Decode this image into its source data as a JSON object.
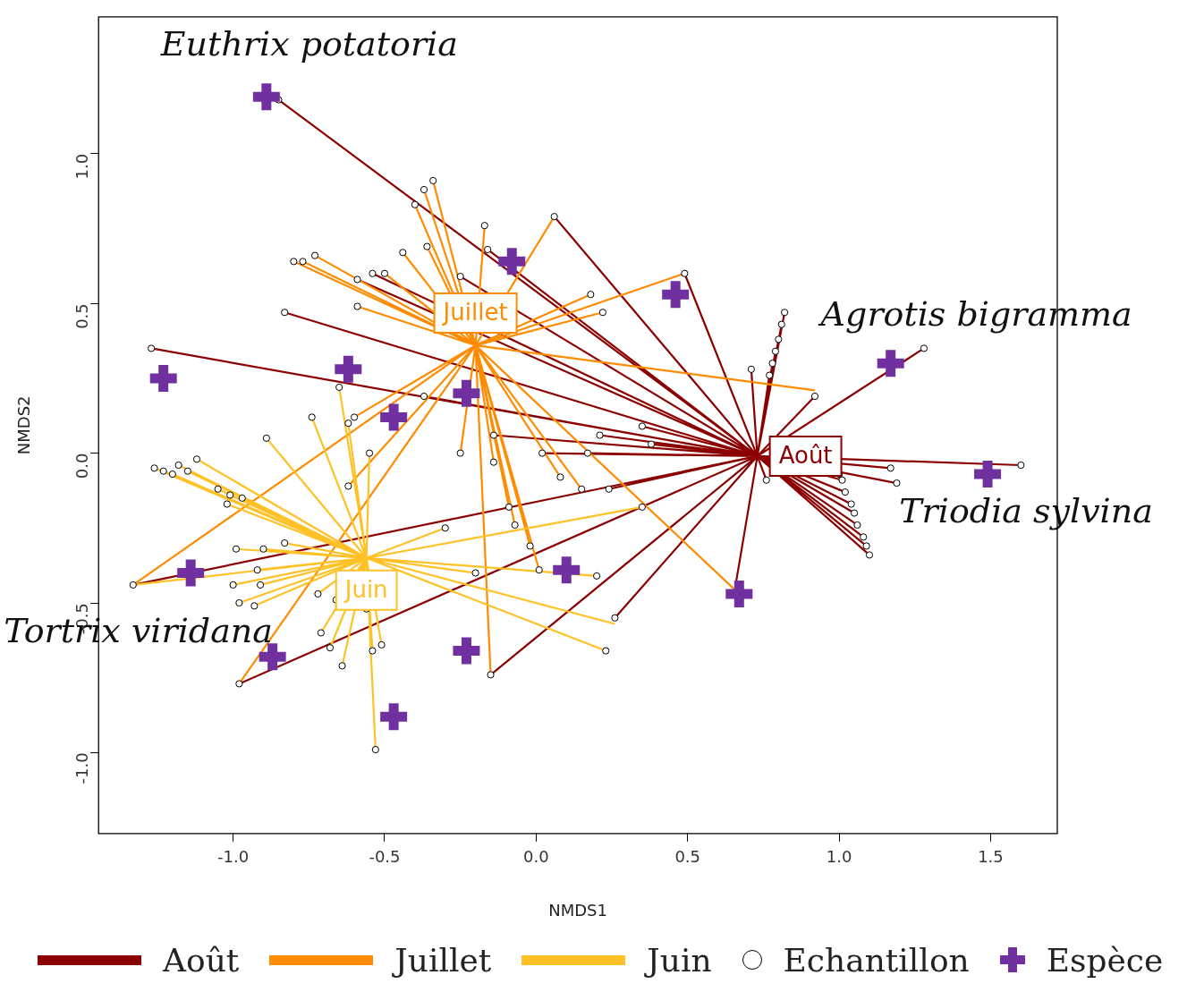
{
  "chart_data": {
    "type": "scatter",
    "xlabel": "NMDS1",
    "ylabel": "NMDS2",
    "xlim": [
      -1.444,
      1.72
    ],
    "ylim": [
      -1.27,
      1.457
    ],
    "xticks": [
      {
        "value": -1,
        "label": "-1.0"
      },
      {
        "value": -0.5,
        "label": "-0.5"
      },
      {
        "value": 0,
        "label": "0.0"
      },
      {
        "value": 0.5,
        "label": "0.5"
      },
      {
        "value": 1,
        "label": "1.0"
      },
      {
        "value": 1.5,
        "label": "1.5"
      }
    ],
    "yticks": [
      {
        "value": -1,
        "label": "-1.0"
      },
      {
        "value": -0.5,
        "label": "-0.5"
      },
      {
        "value": 0,
        "label": "0.0"
      },
      {
        "value": 0.5,
        "label": "0.5"
      },
      {
        "value": 1,
        "label": "1.0"
      }
    ],
    "grid": false,
    "legend": "bottom",
    "annotations": [
      {
        "text": "Août",
        "x": 0.73,
        "y": -0.01
      },
      {
        "text": "Juillet",
        "x": -0.2,
        "y": 0.36
      },
      {
        "text": "Juin",
        "x": -0.56,
        "y": -0.35
      },
      {
        "text": "Euthrix potatoria",
        "x": -0.89,
        "y": 1.19
      },
      {
        "text": "Agrotis bigramma",
        "x": 1.17,
        "y": 0.3
      },
      {
        "text": "Triodia sylvina",
        "x": 1.49,
        "y": -0.07
      },
      {
        "text": "Tortrix viridana",
        "x": -0.87,
        "y": -0.68
      }
    ],
    "series": [
      {
        "name": "Août",
        "type": "line",
        "color": "#8b0000",
        "x": [
          -0.85,
          0.73,
          null,
          0.06,
          0.73,
          null,
          0.49,
          0.73,
          null,
          -0.25,
          0.73,
          null,
          -0.16,
          0.73,
          null,
          0.82,
          0.73,
          null,
          0.81,
          0.73,
          null,
          0.8,
          0.73,
          null,
          0.79,
          0.73,
          null,
          0.78,
          0.73,
          null,
          0.77,
          0.73,
          null,
          0.71,
          0.73,
          null,
          0.92,
          0.73,
          null,
          1.28,
          0.73,
          null,
          1.6,
          0.73,
          null,
          1.17,
          0.73,
          null,
          1.19,
          0.73,
          null,
          1.0,
          0.73,
          null,
          1.01,
          0.73,
          null,
          1.02,
          0.73,
          null,
          1.04,
          0.73,
          null,
          1.05,
          0.73,
          null,
          1.06,
          0.73,
          null,
          1.08,
          0.73,
          null,
          1.09,
          0.73,
          null,
          1.1,
          0.73,
          null,
          0.76,
          0.73,
          null,
          0.66,
          0.73,
          null,
          -0.15,
          0.73,
          null,
          0.26,
          0.73,
          null,
          -0.98,
          0.73,
          null,
          -1.33,
          0.73,
          null,
          -1.27,
          0.73,
          null,
          -0.83,
          0.73,
          null,
          -0.59,
          0.73,
          null,
          -0.54,
          0.73,
          null,
          -0.37,
          0.73,
          null,
          -0.14,
          0.73,
          null,
          0.02,
          0.73,
          null,
          0.17,
          0.73,
          null,
          0.21,
          0.73,
          null,
          0.35,
          0.73,
          null,
          0.24,
          0.73,
          null,
          0.38,
          0.73
        ],
        "values": [
          1.18,
          -0.01,
          null,
          0.79,
          -0.01,
          null,
          0.6,
          -0.01,
          null,
          0.59,
          -0.01,
          null,
          0.68,
          -0.01,
          null,
          0.47,
          -0.01,
          null,
          0.43,
          -0.01,
          null,
          0.38,
          -0.01,
          null,
          0.34,
          -0.01,
          null,
          0.3,
          -0.01,
          null,
          0.26,
          -0.01,
          null,
          0.28,
          -0.01,
          null,
          0.19,
          -0.01,
          null,
          0.35,
          -0.01,
          null,
          -0.04,
          -0.01,
          null,
          -0.05,
          -0.01,
          null,
          -0.1,
          -0.01,
          null,
          -0.07,
          -0.01,
          null,
          -0.09,
          -0.01,
          null,
          -0.13,
          -0.01,
          null,
          -0.17,
          -0.01,
          null,
          -0.2,
          -0.01,
          null,
          -0.24,
          -0.01,
          null,
          -0.28,
          -0.01,
          null,
          -0.31,
          -0.01,
          null,
          -0.34,
          -0.01,
          null,
          -0.09,
          -0.01,
          null,
          -0.43,
          -0.01,
          null,
          -0.74,
          -0.01,
          null,
          -0.55,
          -0.01,
          null,
          -0.77,
          -0.01,
          null,
          -0.44,
          -0.01,
          null,
          0.35,
          -0.01,
          null,
          0.47,
          -0.01,
          null,
          0.58,
          -0.01,
          null,
          0.6,
          -0.01,
          null,
          0.19,
          -0.01,
          null,
          0.06,
          -0.01,
          null,
          0.0,
          -0.01,
          null,
          0.0,
          -0.01,
          null,
          0.06,
          -0.01,
          null,
          0.09,
          -0.01,
          null,
          -0.12,
          -0.01,
          null,
          0.03,
          -0.01
        ]
      },
      {
        "name": "Juillet",
        "type": "line",
        "color": "#ff8c00",
        "x": [
          -0.34,
          -0.2,
          null,
          -0.37,
          -0.2,
          null,
          -0.4,
          -0.2,
          null,
          -0.44,
          -0.2,
          null,
          -0.36,
          -0.2,
          null,
          -0.17,
          -0.2,
          null,
          0.06,
          -0.2,
          null,
          -0.8,
          -0.2,
          null,
          -0.77,
          -0.2,
          null,
          -0.73,
          -0.2,
          null,
          -0.59,
          -0.2,
          null,
          0.18,
          -0.2,
          null,
          0.22,
          -0.2,
          null,
          0.92,
          -0.2,
          null,
          0.49,
          -0.2,
          null,
          -0.62,
          -0.2,
          null,
          -0.25,
          -0.2,
          null,
          -0.14,
          -0.2,
          null,
          -0.09,
          -0.2,
          null,
          0.01,
          -0.2,
          null,
          -0.07,
          -0.2,
          null,
          0.66,
          -0.2,
          null,
          0.08,
          -0.2,
          null,
          0.15,
          -0.2,
          null,
          -0.02,
          -0.2,
          null,
          -0.15,
          -0.2,
          null,
          -1.33,
          -0.2,
          null,
          -0.98,
          -0.2,
          null,
          -0.5,
          -0.2,
          null,
          -0.6,
          -0.2
        ],
        "values": [
          0.91,
          0.36,
          null,
          0.88,
          0.36,
          null,
          0.83,
          0.36,
          null,
          0.67,
          0.36,
          null,
          0.69,
          0.36,
          null,
          0.76,
          0.36,
          null,
          0.79,
          0.36,
          null,
          0.64,
          0.36,
          null,
          0.64,
          0.36,
          null,
          0.66,
          0.36,
          null,
          0.49,
          0.36,
          null,
          0.53,
          0.36,
          null,
          0.47,
          0.36,
          null,
          0.21,
          0.36,
          null,
          0.6,
          0.36,
          null,
          -0.11,
          0.36,
          null,
          0.0,
          0.36,
          null,
          -0.03,
          0.36,
          null,
          -0.18,
          0.36,
          null,
          -0.39,
          0.36,
          null,
          -0.24,
          0.36,
          null,
          -0.46,
          0.36,
          null,
          -0.08,
          0.36,
          null,
          -0.12,
          0.36,
          null,
          -0.31,
          0.36,
          null,
          -0.74,
          0.36,
          null,
          -0.44,
          0.36,
          null,
          -0.77,
          0.36,
          null,
          0.6,
          0.36,
          null,
          0.12,
          0.36
        ]
      },
      {
        "name": "Juin",
        "type": "line",
        "color": "#ffc125",
        "x": [
          -1.26,
          -0.56,
          null,
          -1.23,
          -0.56,
          null,
          -1.2,
          -0.56,
          null,
          -1.18,
          -0.56,
          null,
          -1.15,
          -0.56,
          null,
          -1.12,
          -0.56,
          null,
          -1.05,
          -0.56,
          null,
          -1.01,
          -0.56,
          null,
          -1.02,
          -0.56,
          null,
          -0.97,
          -0.56,
          null,
          -0.99,
          -0.56,
          null,
          -1.0,
          -0.56,
          null,
          -0.98,
          -0.56,
          null,
          -0.91,
          -0.56,
          null,
          -0.93,
          -0.56,
          null,
          -0.92,
          -0.56,
          null,
          -0.9,
          -0.56,
          null,
          -0.72,
          -0.56,
          null,
          -0.71,
          -0.56,
          null,
          -0.64,
          -0.56,
          null,
          -0.68,
          -0.56,
          null,
          -0.53,
          -0.56,
          null,
          -0.54,
          -0.56,
          null,
          -0.51,
          -0.56,
          null,
          -0.56,
          -0.56,
          null,
          -0.66,
          -0.56,
          null,
          0.23,
          -0.56,
          null,
          0.26,
          -0.56,
          null,
          0.35,
          -0.56,
          null,
          0.2,
          -0.56,
          null,
          -0.74,
          -0.56,
          null,
          -0.89,
          -0.56,
          null,
          -0.55,
          -0.56,
          null,
          -0.62,
          -0.56,
          null,
          -0.65,
          -0.56,
          null,
          -1.33,
          -0.56,
          null,
          -0.83,
          -0.56,
          null,
          -0.3,
          -0.56,
          null,
          -0.2,
          -0.56
        ],
        "values": [
          -0.05,
          -0.35,
          null,
          -0.06,
          -0.35,
          null,
          -0.07,
          -0.35,
          null,
          -0.04,
          -0.35,
          null,
          -0.06,
          -0.35,
          null,
          -0.02,
          -0.35,
          null,
          -0.12,
          -0.35,
          null,
          -0.14,
          -0.35,
          null,
          -0.17,
          -0.35,
          null,
          -0.15,
          -0.35,
          null,
          -0.32,
          -0.35,
          null,
          -0.44,
          -0.35,
          null,
          -0.5,
          -0.35,
          null,
          -0.44,
          -0.35,
          null,
          -0.51,
          -0.35,
          null,
          -0.39,
          -0.35,
          null,
          -0.32,
          -0.35,
          null,
          -0.47,
          -0.35,
          null,
          -0.6,
          -0.35,
          null,
          -0.71,
          -0.35,
          null,
          -0.65,
          -0.35,
          null,
          -0.99,
          -0.35,
          null,
          -0.66,
          -0.35,
          null,
          -0.64,
          -0.35,
          null,
          -0.52,
          -0.35,
          null,
          -0.49,
          -0.35,
          null,
          -0.66,
          -0.35,
          null,
          -0.57,
          -0.35,
          null,
          -0.18,
          -0.35,
          null,
          -0.41,
          -0.35,
          null,
          0.12,
          -0.35,
          null,
          0.05,
          -0.35,
          null,
          0.0,
          -0.35,
          null,
          0.1,
          -0.35,
          null,
          0.22,
          -0.35,
          null,
          -0.44,
          -0.35,
          null,
          -0.3,
          -0.35,
          null,
          -0.25,
          -0.35,
          null,
          -0.4,
          -0.35
        ]
      },
      {
        "name": "Echantillon",
        "marker": "circle",
        "color": "#000000",
        "x": [
          -0.85,
          0.06,
          0.49,
          -0.25,
          -0.16,
          0.82,
          0.81,
          0.8,
          0.79,
          0.78,
          0.77,
          0.71,
          0.92,
          1.28,
          1.6,
          1.17,
          1.19,
          1.0,
          1.01,
          1.02,
          1.04,
          1.05,
          1.06,
          1.08,
          1.09,
          1.1,
          0.76,
          -0.15,
          0.26,
          -0.98,
          -1.33,
          -1.27,
          -0.83,
          -0.59,
          -0.54,
          -0.37,
          -0.14,
          0.02,
          0.17,
          0.21,
          0.35,
          0.24,
          0.38,
          -0.34,
          -0.37,
          -0.4,
          -0.44,
          -0.36,
          -0.17,
          -0.8,
          -0.77,
          -0.73,
          -0.59,
          0.18,
          0.22,
          -0.62,
          -0.25,
          -0.14,
          -0.09,
          0.01,
          -0.07,
          0.08,
          0.15,
          -0.02,
          -0.5,
          -0.6,
          -1.26,
          -1.23,
          -1.2,
          -1.18,
          -1.15,
          -1.12,
          -1.05,
          -1.01,
          -1.02,
          -0.97,
          -0.99,
          -1.0,
          -0.98,
          -0.91,
          -0.93,
          -0.92,
          -0.9,
          -0.72,
          -0.71,
          -0.64,
          -0.68,
          -0.53,
          -0.54,
          -0.51,
          -0.56,
          -0.66,
          0.23,
          0.35,
          0.2,
          -0.74,
          -0.89,
          -0.55,
          -0.62,
          -0.65,
          -0.83,
          -0.3,
          -0.2
        ],
        "values": [
          1.18,
          0.79,
          0.6,
          0.59,
          0.68,
          0.47,
          0.43,
          0.38,
          0.34,
          0.3,
          0.26,
          0.28,
          0.19,
          0.35,
          -0.04,
          -0.05,
          -0.1,
          -0.07,
          -0.09,
          -0.13,
          -0.17,
          -0.2,
          -0.24,
          -0.28,
          -0.31,
          -0.34,
          -0.09,
          -0.74,
          -0.55,
          -0.77,
          -0.44,
          0.35,
          0.47,
          0.58,
          0.6,
          0.19,
          0.06,
          0.0,
          0.0,
          0.06,
          0.09,
          -0.12,
          0.03,
          0.91,
          0.88,
          0.83,
          0.67,
          0.69,
          0.76,
          0.64,
          0.64,
          0.66,
          0.49,
          0.53,
          0.47,
          -0.11,
          0.0,
          -0.03,
          -0.18,
          -0.39,
          -0.24,
          -0.08,
          -0.12,
          -0.31,
          0.6,
          0.12,
          -0.05,
          -0.06,
          -0.07,
          -0.04,
          -0.06,
          -0.02,
          -0.12,
          -0.14,
          -0.17,
          -0.15,
          -0.32,
          -0.44,
          -0.5,
          -0.44,
          -0.51,
          -0.39,
          -0.32,
          -0.47,
          -0.6,
          -0.71,
          -0.65,
          -0.99,
          -0.66,
          -0.64,
          -0.52,
          -0.49,
          -0.66,
          -0.18,
          -0.41,
          0.12,
          0.05,
          0.0,
          0.1,
          0.22,
          -0.3,
          -0.25,
          -0.4
        ]
      },
      {
        "name": "Espèce",
        "marker": "cross",
        "color": "#7030a0",
        "x": [
          -0.89,
          -0.08,
          0.46,
          1.17,
          1.49,
          0.67,
          0.1,
          -0.23,
          -0.47,
          -0.87,
          -1.14,
          -1.23,
          -0.62,
          -0.47,
          -0.23
        ],
        "values": [
          1.19,
          0.64,
          0.53,
          0.3,
          -0.07,
          -0.47,
          -0.39,
          -0.66,
          -0.88,
          -0.68,
          -0.4,
          0.25,
          0.28,
          0.12,
          0.2
        ]
      }
    ]
  }
}
